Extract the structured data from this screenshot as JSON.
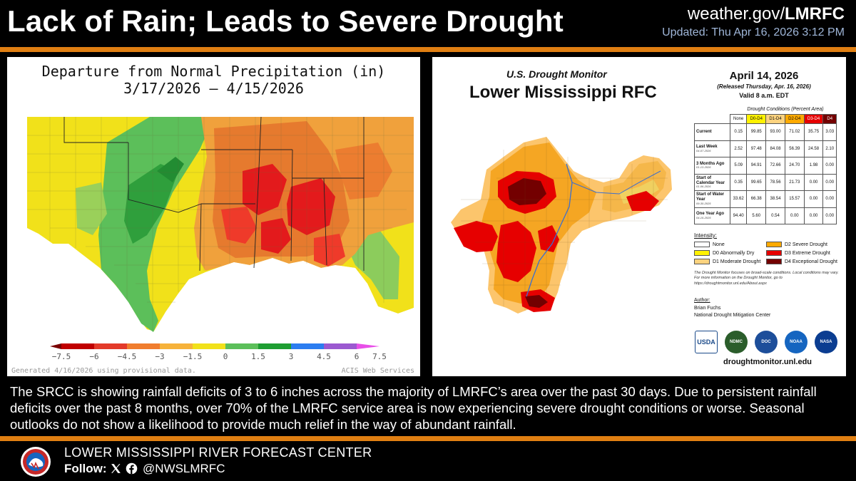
{
  "header": {
    "title": "Lack of Rain; Leads to Severe Drought",
    "site_prefix": "weather.gov/",
    "site_bold": "LMRFC",
    "updated": "Updated: Thu Apr 16, 2026 3:12 PM"
  },
  "precip_map": {
    "title_line1": "Departure from Normal Precipitation (in)",
    "title_line2": "3/17/2026 – 4/15/2026",
    "footer_left": "Generated 4/16/2026 using provisional data.",
    "footer_right": "ACIS Web Services",
    "colorbar_labels": [
      "−7.5",
      "−6",
      "−4.5",
      "−3",
      "−1.5",
      "0",
      "1.5",
      "3",
      "4.5",
      "6",
      "7.5"
    ]
  },
  "drought_monitor": {
    "title_small": "U.S. Drought Monitor",
    "title_large": "Lower Mississippi RFC",
    "date": "April 14, 2026",
    "released": "(Released Thursday, Apr. 16, 2026)",
    "valid": "Valid 8 a.m. EDT",
    "conditions_caption": "Drought Conditions (Percent Area)",
    "columns": [
      "None",
      "D0-D4",
      "D1-D4",
      "D2-D4",
      "D3-D4",
      "D4"
    ],
    "rows": [
      {
        "label": "Current",
        "sub": "",
        "values": [
          "0.15",
          "99.85",
          "93.00",
          "71.02",
          "35.75",
          "3.03"
        ]
      },
      {
        "label": "Last Week",
        "sub": "04-07-2026",
        "values": [
          "2.52",
          "97.48",
          "84.08",
          "56.39",
          "24.58",
          "2.10"
        ]
      },
      {
        "label": "3 Months Ago",
        "sub": "01-13-2026",
        "values": [
          "5.09",
          "94.91",
          "72.66",
          "24.70",
          "1.98",
          "0.00"
        ]
      },
      {
        "label": "Start of Calendar Year",
        "sub": "01-06-2026",
        "values": [
          "0.35",
          "99.65",
          "78.56",
          "21.73",
          "0.00",
          "0.00"
        ]
      },
      {
        "label": "Start of Water Year",
        "sub": "09-30-2025",
        "values": [
          "33.62",
          "66.38",
          "38.54",
          "15.57",
          "0.00",
          "0.00"
        ]
      },
      {
        "label": "One Year Ago",
        "sub": "04-15-2025",
        "values": [
          "94.40",
          "5.60",
          "0.54",
          "0.00",
          "0.00",
          "0.00"
        ]
      }
    ],
    "intensity_label": "Intensity:",
    "legend": [
      {
        "label": "None",
        "color": "#ffffff"
      },
      {
        "label": "D0 Abnormally Dry",
        "color": "#fff200"
      },
      {
        "label": "D1 Moderate Drought",
        "color": "#fcd37f"
      },
      {
        "label": "D2 Severe Drought",
        "color": "#ffaa00"
      },
      {
        "label": "D3 Extreme Drought",
        "color": "#e60000"
      },
      {
        "label": "D4 Exceptional Drought",
        "color": "#730000"
      }
    ],
    "note": "The Drought Monitor focuses on broad-scale conditions. Local conditions may vary. For more information on the Drought Monitor, go to https://droughtmonitor.unl.edu/About.aspx",
    "author_label": "Author:",
    "author_name": "Brian Fuchs",
    "author_org": "National Drought Mitigation Center",
    "logos": [
      "USDA",
      "NDMC",
      "DOC",
      "NOAA",
      "NASA"
    ],
    "url": "droughtmonitor.unl.edu"
  },
  "caption": "The SRCC is showing rainfall deficits of 3 to 6 inches across the majority of LMRFC’s area over the past 30 days. Due to persistent rainfall deficits over the past 8 months, over 70% of the LMRFC service area is now experiencing severe drought conditions or worse. Seasonal outlooks do not show a likelihood to provide much relief in the way of abundant rainfall.",
  "footer": {
    "org": "LOWER MISSISSIPPI RIVER FORECAST CENTER",
    "follow": "Follow:",
    "handle": "@NWSLMRFC"
  },
  "colors": {
    "accent_rule": "#e07f12",
    "updated_text": "#9fb6d8",
    "background": "#000000"
  }
}
